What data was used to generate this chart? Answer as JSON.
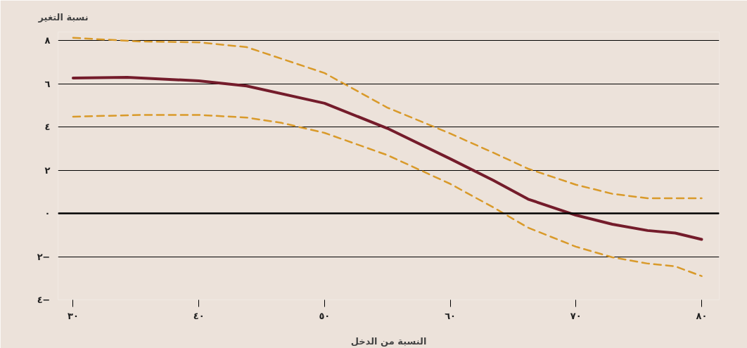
{
  "chart_data": {
    "type": "line",
    "ylabel": "نسبة التغير",
    "xlabel": "النسبة من الدخل",
    "xlim": [
      28.8,
      81.4
    ],
    "ylim": [
      -4,
      8.4
    ],
    "xticks": [
      {
        "value": 30,
        "label": "٣٠"
      },
      {
        "value": 40,
        "label": "٤٠"
      },
      {
        "value": 50,
        "label": "٥٠"
      },
      {
        "value": 60,
        "label": "٦٠"
      },
      {
        "value": 70,
        "label": "٧٠"
      },
      {
        "value": 80,
        "label": "٨٠"
      }
    ],
    "yticks": [
      {
        "value": -4,
        "label": "٤−"
      },
      {
        "value": -2,
        "label": "٢−"
      },
      {
        "value": 0,
        "label": "٠"
      },
      {
        "value": 2,
        "label": "٢"
      },
      {
        "value": 4,
        "label": "٤"
      },
      {
        "value": 6,
        "label": "٦"
      },
      {
        "value": 8,
        "label": "٨"
      }
    ],
    "grid": "y",
    "ref_lines": [
      {
        "axis": "y",
        "value": 0,
        "label": null,
        "color": "#000000"
      }
    ],
    "series": [
      {
        "color": "#d99a2a",
        "line_style": "dashed",
        "x": [
          30,
          35.4,
          40,
          43.8,
          50,
          55,
          60,
          63.4,
          66.2,
          70,
          72.9,
          75.7,
          80
        ],
        "values": [
          8.13,
          7.96,
          7.92,
          7.7,
          6.5,
          4.9,
          3.7,
          2.82,
          2.07,
          1.33,
          0.91,
          0.7,
          0.7
        ]
      },
      {
        "color": "#d99a2a",
        "line_style": "dashed",
        "x": [
          30,
          35.4,
          40,
          43.8,
          46.6,
          50,
          55,
          60,
          63.4,
          66.2,
          70,
          72.9,
          75.7,
          77.9,
          80
        ],
        "values": [
          4.48,
          4.56,
          4.56,
          4.44,
          4.19,
          3.73,
          2.7,
          1.37,
          0.29,
          -0.66,
          -1.54,
          -2.03,
          -2.32,
          -2.45,
          -2.9
        ]
      },
      {
        "color": "#741c2b",
        "line_style": "solid",
        "x": [
          30,
          34.3,
          40,
          43.8,
          50,
          55,
          60,
          63.4,
          66.2,
          70,
          72.9,
          75.7,
          77.9,
          80
        ],
        "values": [
          6.27,
          6.3,
          6.14,
          5.9,
          5.1,
          3.94,
          2.53,
          1.54,
          0.66,
          -0.08,
          -0.5,
          -0.79,
          -0.91,
          -1.2
        ]
      }
    ]
  }
}
